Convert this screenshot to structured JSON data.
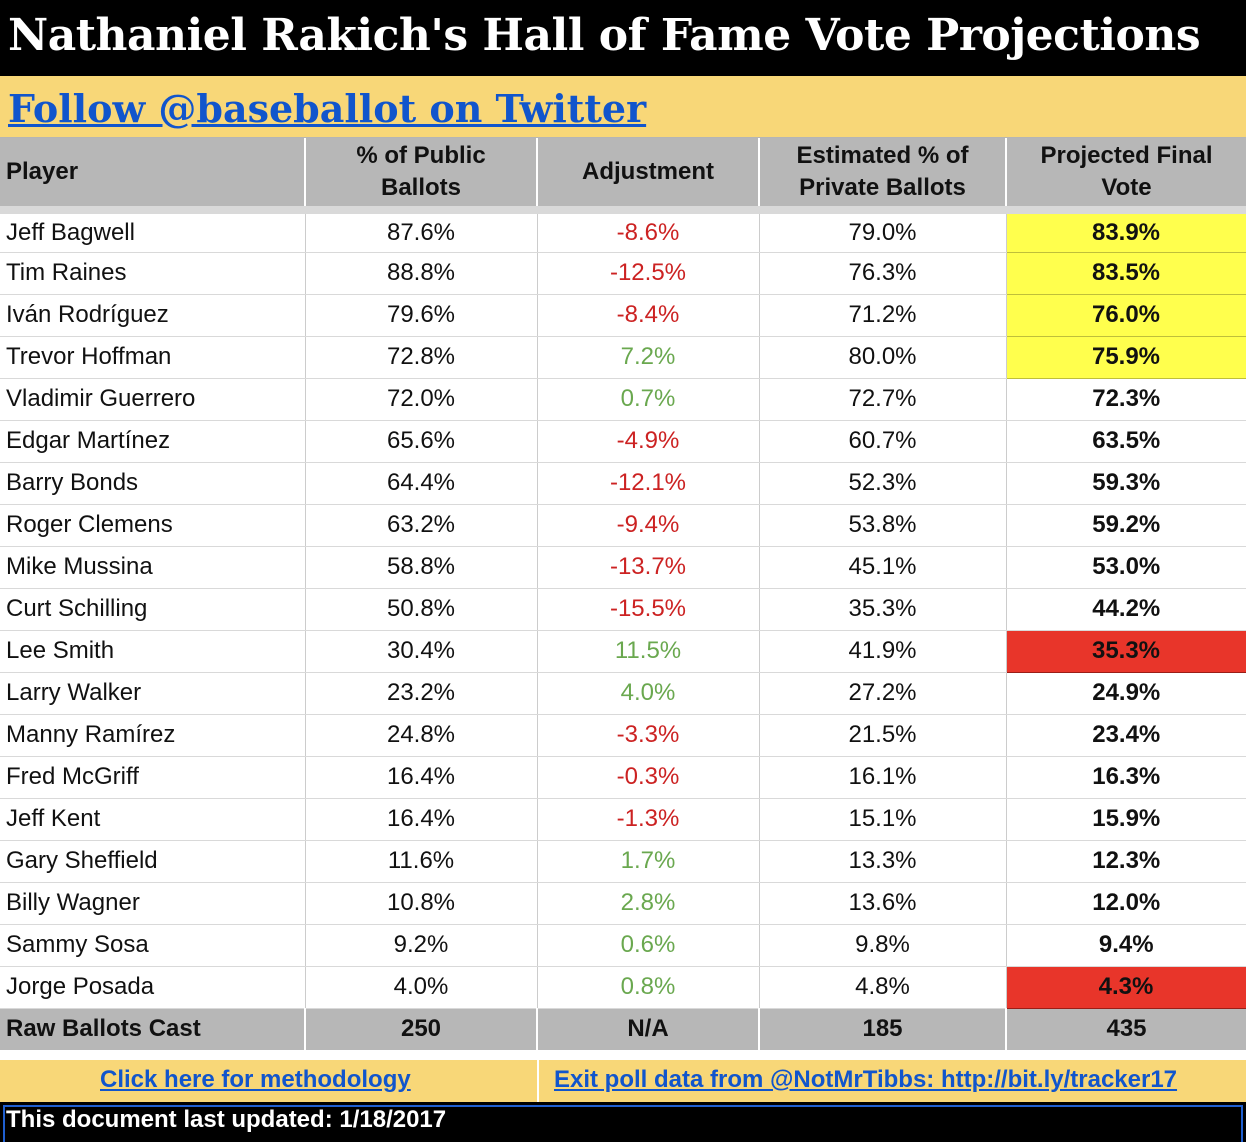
{
  "title": "Nathaniel Rakich's Hall of Fame Vote Projections",
  "twitter_link": "Follow @baseballot on Twitter",
  "headers": {
    "player": "Player",
    "public_line1": "% of Public",
    "public_line2": "Ballots",
    "adjustment": "Adjustment",
    "private_line1": "Estimated % of",
    "private_line2": "Private Ballots",
    "final_line1": "Projected Final",
    "final_line2": "Vote"
  },
  "rows": [
    {
      "player": "Jeff Bagwell",
      "public": "87.6%",
      "adjustment": "-8.6%",
      "adj_sign": "neg",
      "private": "79.0%",
      "final": "83.9%",
      "highlight": "yellow"
    },
    {
      "player": "Tim Raines",
      "public": "88.8%",
      "adjustment": "-12.5%",
      "adj_sign": "neg",
      "private": "76.3%",
      "final": "83.5%",
      "highlight": "yellow"
    },
    {
      "player": "Iván Rodríguez",
      "public": "79.6%",
      "adjustment": "-8.4%",
      "adj_sign": "neg",
      "private": "71.2%",
      "final": "76.0%",
      "highlight": "yellow"
    },
    {
      "player": "Trevor Hoffman",
      "public": "72.8%",
      "adjustment": "7.2%",
      "adj_sign": "pos",
      "private": "80.0%",
      "final": "75.9%",
      "highlight": "yellow"
    },
    {
      "player": "Vladimir Guerrero",
      "public": "72.0%",
      "adjustment": "0.7%",
      "adj_sign": "pos",
      "private": "72.7%",
      "final": "72.3%",
      "highlight": "none"
    },
    {
      "player": "Edgar Martínez",
      "public": "65.6%",
      "adjustment": "-4.9%",
      "adj_sign": "neg",
      "private": "60.7%",
      "final": "63.5%",
      "highlight": "none"
    },
    {
      "player": "Barry Bonds",
      "public": "64.4%",
      "adjustment": "-12.1%",
      "adj_sign": "neg",
      "private": "52.3%",
      "final": "59.3%",
      "highlight": "none"
    },
    {
      "player": "Roger Clemens",
      "public": "63.2%",
      "adjustment": "-9.4%",
      "adj_sign": "neg",
      "private": "53.8%",
      "final": "59.2%",
      "highlight": "none"
    },
    {
      "player": "Mike Mussina",
      "public": "58.8%",
      "adjustment": "-13.7%",
      "adj_sign": "neg",
      "private": "45.1%",
      "final": "53.0%",
      "highlight": "none"
    },
    {
      "player": "Curt Schilling",
      "public": "50.8%",
      "adjustment": "-15.5%",
      "adj_sign": "neg",
      "private": "35.3%",
      "final": "44.2%",
      "highlight": "none"
    },
    {
      "player": "Lee Smith",
      "public": "30.4%",
      "adjustment": "11.5%",
      "adj_sign": "pos",
      "private": "41.9%",
      "final": "35.3%",
      "highlight": "red"
    },
    {
      "player": "Larry Walker",
      "public": "23.2%",
      "adjustment": "4.0%",
      "adj_sign": "pos",
      "private": "27.2%",
      "final": "24.9%",
      "highlight": "none"
    },
    {
      "player": "Manny Ramírez",
      "public": "24.8%",
      "adjustment": "-3.3%",
      "adj_sign": "neg",
      "private": "21.5%",
      "final": "23.4%",
      "highlight": "none"
    },
    {
      "player": "Fred McGriff",
      "public": "16.4%",
      "adjustment": "-0.3%",
      "adj_sign": "neg",
      "private": "16.1%",
      "final": "16.3%",
      "highlight": "none"
    },
    {
      "player": "Jeff Kent",
      "public": "16.4%",
      "adjustment": "-1.3%",
      "adj_sign": "neg",
      "private": "15.1%",
      "final": "15.9%",
      "highlight": "none"
    },
    {
      "player": "Gary Sheffield",
      "public": "11.6%",
      "adjustment": "1.7%",
      "adj_sign": "pos",
      "private": "13.3%",
      "final": "12.3%",
      "highlight": "none"
    },
    {
      "player": "Billy Wagner",
      "public": "10.8%",
      "adjustment": "2.8%",
      "adj_sign": "pos",
      "private": "13.6%",
      "final": "12.0%",
      "highlight": "none"
    },
    {
      "player": "Sammy Sosa",
      "public": "9.2%",
      "adjustment": "0.6%",
      "adj_sign": "pos",
      "private": "9.8%",
      "final": "9.4%",
      "highlight": "none"
    },
    {
      "player": "Jorge Posada",
      "public": "4.0%",
      "adjustment": "0.8%",
      "adj_sign": "pos",
      "private": "4.8%",
      "final": "4.3%",
      "highlight": "red"
    }
  ],
  "totals": {
    "label": "Raw Ballots Cast",
    "public": "250",
    "adjustment": "N/A",
    "private": "185",
    "final": "435"
  },
  "links": {
    "methodology": "Click here for methodology",
    "exit_poll": "Exit poll data from @NotMrTibbs: http://bit.ly/tracker17"
  },
  "footer": "This document last updated: 1/18/2017",
  "colors": {
    "yellow_highlight": "#ffff4d",
    "red_highlight": "#e8352a",
    "negative_adjustment": "#cc2222",
    "positive_adjustment": "#6aa84f",
    "link": "#1155cc",
    "banner": "#f8d778"
  }
}
